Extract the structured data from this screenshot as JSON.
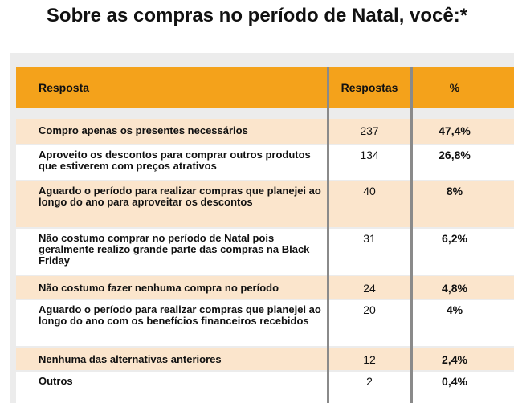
{
  "chart_data": {
    "type": "table",
    "title": "Sobre as compras no período de Natal, você:*",
    "columns": [
      "Resposta",
      "Respostas",
      "%"
    ],
    "rows": [
      {
        "label": "Compro apenas os presentes necessários",
        "count": 237,
        "percent": "47,4%"
      },
      {
        "label": "Aproveito os descontos para comprar outros produtos que estiverem com preços atrativos",
        "count": 134,
        "percent": "26,8%"
      },
      {
        "label": "Aguardo o período para realizar compras que planejei ao longo do ano para aproveitar os descontos",
        "count": 40,
        "percent": "8%"
      },
      {
        "label": "Não costumo comprar no período de Natal pois geralmente realizo grande parte das compras na Black Friday",
        "count": 31,
        "percent": "6,2%"
      },
      {
        "label": "Não costumo fazer nenhuma compra no período",
        "count": 24,
        "percent": "4,8%"
      },
      {
        "label": "Aguardo o período para realizar compras que planejei ao longo do ano com os benefícios financeiros recebidos",
        "count": 20,
        "percent": "4%"
      },
      {
        "label": "Nenhuma das alternativas anteriores",
        "count": 12,
        "percent": "2,4%"
      },
      {
        "label": "Outros",
        "count": 2,
        "percent": "0,4%"
      }
    ]
  },
  "colors": {
    "header_bg": "#f4a21b",
    "row_shade": "#fbe5cc",
    "panel_bg": "#ececec"
  }
}
